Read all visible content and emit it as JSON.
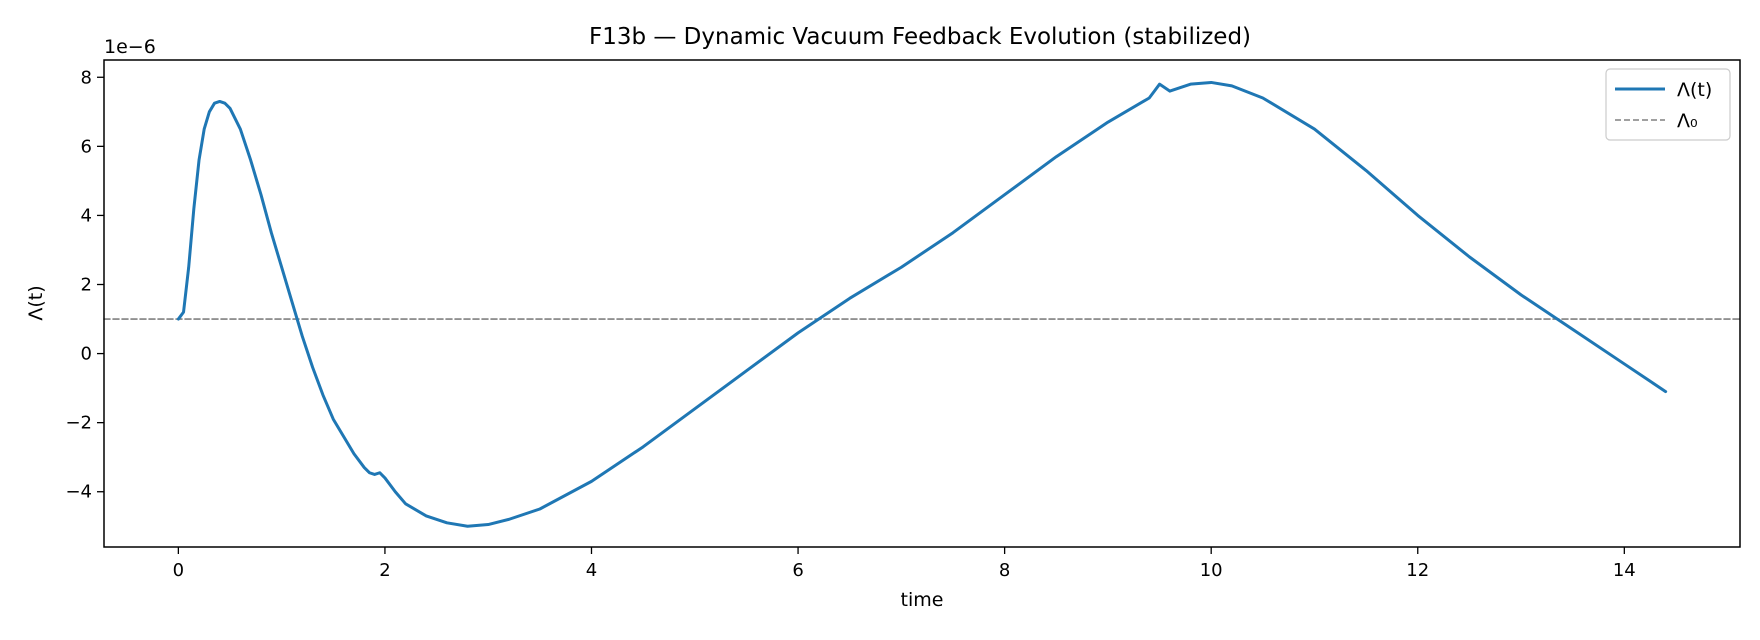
{
  "chart_data": {
    "type": "line",
    "title": "F13b — Dynamic Vacuum Feedback Evolution (stabilized)",
    "xlabel": "time",
    "ylabel": "Λ(t)",
    "y_offset_text": "1e−6",
    "xlim": [
      -0.72,
      15.12
    ],
    "ylim": [
      -5.6,
      8.5
    ],
    "xticks": [
      0,
      2,
      4,
      6,
      8,
      10,
      12,
      14
    ],
    "yticks": [
      -4,
      -2,
      0,
      2,
      4,
      6,
      8
    ],
    "ytick_labels": [
      "−4",
      "−2",
      "0",
      "2",
      "4",
      "6",
      "8"
    ],
    "grid": false,
    "legend_position": "top-right",
    "series": [
      {
        "name": "Λ(t)",
        "color": "#1f77b4",
        "style": "solid",
        "x": [
          0.0,
          0.05,
          0.1,
          0.15,
          0.2,
          0.25,
          0.3,
          0.35,
          0.4,
          0.45,
          0.5,
          0.55,
          0.6,
          0.7,
          0.8,
          0.9,
          1.0,
          1.1,
          1.2,
          1.3,
          1.4,
          1.5,
          1.6,
          1.7,
          1.8,
          1.85,
          1.9,
          1.95,
          2.0,
          2.1,
          2.2,
          2.4,
          2.6,
          2.8,
          3.0,
          3.2,
          3.5,
          4.0,
          4.5,
          5.0,
          5.5,
          6.0,
          6.5,
          7.0,
          7.5,
          8.0,
          8.5,
          9.0,
          9.4,
          9.45,
          9.5,
          9.55,
          9.6,
          9.8,
          10.0,
          10.2,
          10.5,
          11.0,
          11.5,
          12.0,
          12.5,
          13.0,
          13.5,
          14.0,
          14.4
        ],
        "y": [
          1.0,
          1.2,
          2.5,
          4.2,
          5.6,
          6.5,
          7.0,
          7.25,
          7.3,
          7.25,
          7.1,
          6.8,
          6.5,
          5.6,
          4.6,
          3.5,
          2.5,
          1.5,
          0.5,
          -0.4,
          -1.2,
          -1.9,
          -2.4,
          -2.9,
          -3.3,
          -3.45,
          -3.5,
          -3.45,
          -3.6,
          -4.0,
          -4.35,
          -4.7,
          -4.9,
          -5.0,
          -4.95,
          -4.8,
          -4.5,
          -3.7,
          -2.7,
          -1.6,
          -0.5,
          0.6,
          1.6,
          2.5,
          3.5,
          4.6,
          5.7,
          6.7,
          7.4,
          7.6,
          7.8,
          7.7,
          7.6,
          7.8,
          7.85,
          7.75,
          7.4,
          6.5,
          5.3,
          4.0,
          2.8,
          1.7,
          0.7,
          -0.3,
          -1.1
        ]
      },
      {
        "name": "Λ₀",
        "color": "#808080",
        "style": "dashed",
        "x": [
          -0.72,
          15.12
        ],
        "y": [
          1.0,
          1.0
        ]
      }
    ]
  }
}
